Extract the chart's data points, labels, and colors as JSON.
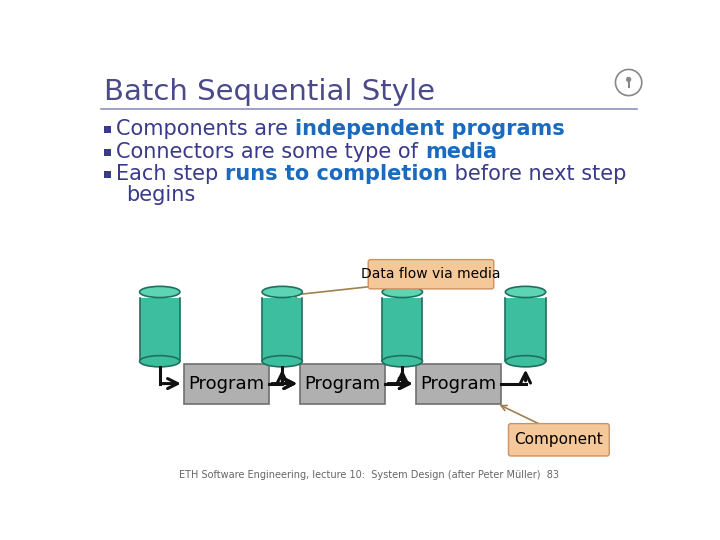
{
  "title": "Batch Sequential Style",
  "title_color": "#4a4a8a",
  "background_color": "#ffffff",
  "bullet_color": "#3a3a8a",
  "highlight_color": "#1a6abf",
  "callout1_text": "Data flow via media",
  "callout2_text": "Component",
  "callout_bg": "#f5c89a",
  "callout_edge": "#d09060",
  "cylinder_color": "#3dbf9f",
  "cylinder_edge": "#207060",
  "program_face": "#b0b0b0",
  "program_edge": "#707070",
  "footer_text": "ETH Software Engineering, lecture 10:  System Design (after Peter Müller)  83",
  "separator_color": "#9090bb",
  "arrow_color": "#111111",
  "logo_color": "#888888"
}
